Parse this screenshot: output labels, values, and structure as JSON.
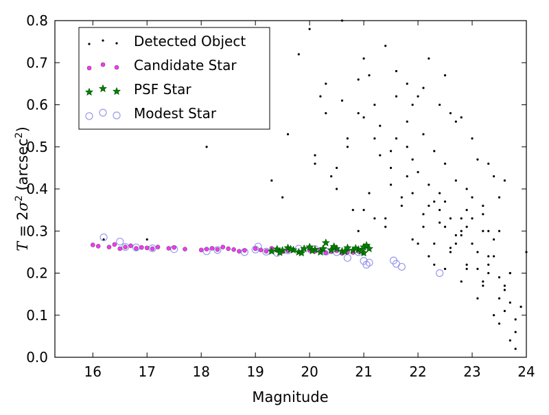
{
  "chart_data": {
    "type": "scatter",
    "title": "",
    "xlabel": "Magnitude",
    "ylabel": "T = 2σ² (arcsec²)",
    "xlim": [
      15.3,
      24.0
    ],
    "ylim": [
      0.0,
      0.8
    ],
    "xticks": [
      16,
      17,
      18,
      19,
      20,
      21,
      22,
      23,
      24
    ],
    "yticks": [
      0.0,
      0.1,
      0.2,
      0.3,
      0.4,
      0.5,
      0.6,
      0.7,
      0.8
    ],
    "grid": false,
    "legend_position": "top-left",
    "series": [
      {
        "name": "Detected Object",
        "marker": "dot",
        "color": "#000000",
        "x": [
          16.2,
          17.0,
          18.1,
          18.8,
          19.1,
          19.3,
          19.5,
          19.8,
          20.0,
          20.1,
          20.2,
          20.3,
          20.5,
          20.6,
          20.7,
          20.8,
          20.9,
          21.0,
          21.1,
          21.2,
          21.3,
          21.4,
          21.5,
          21.6,
          21.7,
          21.8,
          21.9,
          22.0,
          22.1,
          22.2,
          22.3,
          22.4,
          22.5,
          22.6,
          22.7,
          22.8,
          22.9,
          23.0,
          23.1,
          23.2,
          23.3,
          23.4,
          23.5,
          23.6,
          23.7,
          23.8,
          23.9,
          24.0,
          20.4,
          20.7,
          21.0,
          21.3,
          21.6,
          21.9,
          22.2,
          22.5,
          22.8,
          23.1,
          23.4,
          23.7,
          21.1,
          21.5,
          21.8,
          22.1,
          22.4,
          22.7,
          23.0,
          23.3,
          23.6,
          22.0,
          22.3,
          22.6,
          22.9,
          23.2,
          23.5,
          21.9,
          22.2,
          22.5,
          22.8,
          23.1,
          23.4,
          23.8,
          20.9,
          21.4,
          21.7,
          22.0,
          22.6,
          22.9,
          23.2,
          23.5,
          23.7,
          21.2,
          21.6,
          22.1,
          22.4,
          22.7,
          23.0,
          23.3,
          23.6,
          22.3,
          22.6,
          22.9,
          23.2,
          23.5,
          21.8,
          22.2,
          22.5,
          22.8,
          23.1,
          23.4,
          20.3,
          20.6,
          20.9,
          21.2,
          21.5,
          21.8,
          22.4,
          22.7,
          23.0,
          23.3,
          23.6,
          23.9,
          22.1,
          22.5,
          22.9,
          23.2,
          23.5,
          23.8,
          19.6,
          20.1,
          20.5,
          21.0,
          21.4,
          21.9,
          22.3,
          22.8,
          23.3,
          23.7
        ],
        "y": [
          0.28,
          0.28,
          0.5,
          0.55,
          0.6,
          0.42,
          0.38,
          0.72,
          0.78,
          0.48,
          0.62,
          0.58,
          0.45,
          0.8,
          0.52,
          0.35,
          0.66,
          0.71,
          0.67,
          0.33,
          0.55,
          0.74,
          0.41,
          0.62,
          0.38,
          0.5,
          0.6,
          0.44,
          0.31,
          0.36,
          0.27,
          0.39,
          0.46,
          0.33,
          0.42,
          0.29,
          0.35,
          0.38,
          0.25,
          0.3,
          0.22,
          0.28,
          0.19,
          0.16,
          0.2,
          0.09,
          0.12,
          0.25,
          0.43,
          0.5,
          0.57,
          0.48,
          0.52,
          0.47,
          0.41,
          0.37,
          0.3,
          0.21,
          0.24,
          0.13,
          0.39,
          0.45,
          0.56,
          0.53,
          0.35,
          0.27,
          0.33,
          0.2,
          0.11,
          0.62,
          0.49,
          0.58,
          0.4,
          0.36,
          0.3,
          0.28,
          0.24,
          0.21,
          0.18,
          0.14,
          0.1,
          0.06,
          0.3,
          0.33,
          0.36,
          0.27,
          0.25,
          0.22,
          0.18,
          0.14,
          0.04,
          0.6,
          0.68,
          0.64,
          0.6,
          0.56,
          0.52,
          0.46,
          0.42,
          0.22,
          0.26,
          0.31,
          0.34,
          0.38,
          0.65,
          0.71,
          0.67,
          0.57,
          0.47,
          0.43,
          0.65,
          0.61,
          0.58,
          0.52,
          0.49,
          0.43,
          0.32,
          0.29,
          0.27,
          0.24,
          0.17,
          0.12,
          0.34,
          0.31,
          0.21,
          0.17,
          0.08,
          0.02,
          0.53,
          0.46,
          0.4,
          0.35,
          0.31,
          0.39,
          0.37,
          0.33,
          0.3,
          0.2
        ]
      },
      {
        "name": "Candidate Star",
        "marker": "small-circle",
        "color": "#ff33ff",
        "x": [
          16.0,
          16.1,
          16.3,
          16.4,
          16.5,
          16.6,
          16.7,
          16.8,
          16.9,
          17.0,
          17.1,
          17.2,
          17.4,
          17.5,
          17.7,
          18.0,
          18.1,
          18.2,
          18.3,
          18.4,
          18.5,
          18.6,
          18.7,
          18.8,
          19.0,
          19.1,
          19.2,
          19.3,
          19.4,
          19.5,
          19.6,
          19.7,
          19.8,
          20.0,
          20.1,
          20.2,
          20.3,
          20.4,
          20.5,
          20.6,
          20.7,
          20.8,
          20.9,
          21.0
        ],
        "y": [
          0.267,
          0.264,
          0.262,
          0.268,
          0.258,
          0.262,
          0.265,
          0.259,
          0.261,
          0.26,
          0.258,
          0.262,
          0.259,
          0.261,
          0.257,
          0.255,
          0.257,
          0.259,
          0.256,
          0.262,
          0.258,
          0.256,
          0.252,
          0.254,
          0.258,
          0.255,
          0.252,
          0.259,
          0.254,
          0.251,
          0.253,
          0.255,
          0.25,
          0.254,
          0.252,
          0.256,
          0.249,
          0.251,
          0.253,
          0.247,
          0.25,
          0.249,
          0.252,
          0.248
        ]
      },
      {
        "name": "PSF Star",
        "marker": "star",
        "color": "#008000",
        "x": [
          19.3,
          19.4,
          19.5,
          19.6,
          19.7,
          19.8,
          19.9,
          20.0,
          20.1,
          20.2,
          20.3,
          20.4,
          20.5,
          20.6,
          20.7,
          20.8,
          20.9,
          21.0,
          21.0,
          21.05,
          21.1,
          20.95,
          20.85,
          20.65,
          20.45,
          20.25,
          20.05,
          19.85,
          19.65,
          19.45
        ],
        "y": [
          0.252,
          0.257,
          0.254,
          0.26,
          0.255,
          0.25,
          0.258,
          0.262,
          0.256,
          0.25,
          0.272,
          0.255,
          0.258,
          0.252,
          0.26,
          0.254,
          0.256,
          0.262,
          0.248,
          0.266,
          0.258,
          0.252,
          0.259,
          0.251,
          0.263,
          0.258,
          0.253,
          0.248,
          0.257,
          0.249
        ]
      },
      {
        "name": "Modest Star",
        "marker": "open-circle",
        "color": "#9999ee",
        "x": [
          16.2,
          16.5,
          16.6,
          16.8,
          17.1,
          17.5,
          18.1,
          18.3,
          18.8,
          19.0,
          19.05,
          19.2,
          19.4,
          19.6,
          19.8,
          20.1,
          20.3,
          20.5,
          20.7,
          20.9,
          21.0,
          21.05,
          21.1,
          21.55,
          21.6,
          21.7,
          22.4
        ],
        "y": [
          0.285,
          0.275,
          0.262,
          0.261,
          0.259,
          0.257,
          0.252,
          0.255,
          0.25,
          0.256,
          0.263,
          0.251,
          0.248,
          0.254,
          0.258,
          0.257,
          0.251,
          0.25,
          0.236,
          0.25,
          0.229,
          0.22,
          0.225,
          0.23,
          0.222,
          0.215,
          0.2
        ]
      }
    ]
  },
  "legend": {
    "items": [
      {
        "label": "Detected Object"
      },
      {
        "label": "Candidate Star"
      },
      {
        "label": "PSF Star"
      },
      {
        "label": "Modest Star"
      }
    ]
  }
}
